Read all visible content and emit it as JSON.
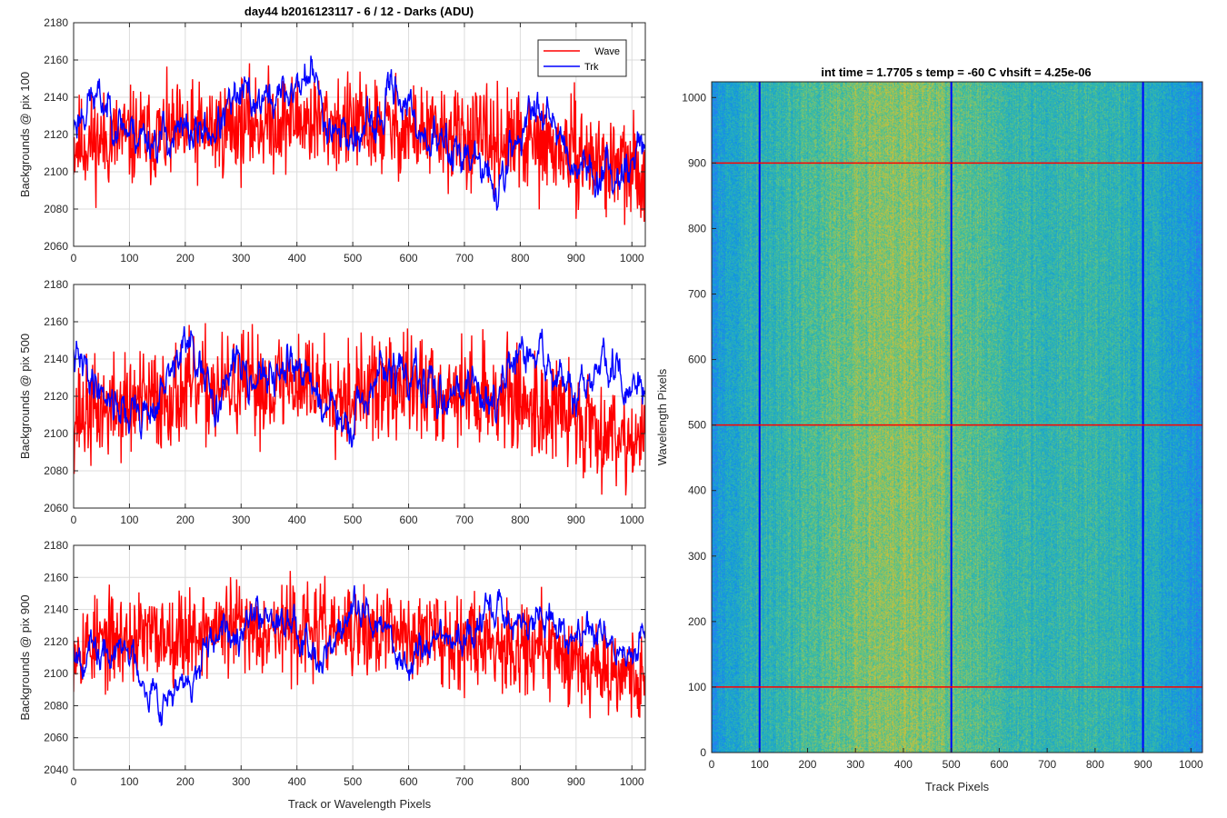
{
  "figure": {
    "title": "day44 b2016123117 - 6 / 12 - Darks (ADU)",
    "colors": {
      "wave": "#ff0000",
      "trk": "#0000ff",
      "grid": "#dcdcdc",
      "axis": "#262626"
    }
  },
  "chart_data": [
    {
      "type": "line",
      "ylabel": "Backgrounds @ pix 100",
      "xlabel": "",
      "xlim": [
        0,
        1024
      ],
      "ylim": [
        2060,
        2180
      ],
      "xticks": [
        0,
        100,
        200,
        300,
        400,
        500,
        600,
        700,
        800,
        900,
        1000
      ],
      "yticks": [
        2060,
        2080,
        2100,
        2120,
        2140,
        2160,
        2180
      ],
      "grid": true,
      "legend": {
        "placement": "top-right",
        "entries": [
          "Wave",
          "Trk"
        ]
      },
      "series": [
        {
          "name": "Wave",
          "color": "#ff0000",
          "mean": 2120,
          "noise": 13,
          "seed": 11,
          "anchors": [
            [
              0,
              2115
            ],
            [
              100,
              2118
            ],
            [
              200,
              2120
            ],
            [
              300,
              2125
            ],
            [
              400,
              2128
            ],
            [
              500,
              2125
            ],
            [
              600,
              2122
            ],
            [
              700,
              2118
            ],
            [
              800,
              2115
            ],
            [
              900,
              2110
            ],
            [
              1000,
              2100
            ],
            [
              1024,
              2098
            ]
          ]
        },
        {
          "name": "Trk",
          "color": "#0000ff",
          "mean": 2120,
          "noise": 4,
          "seed": 23,
          "anchors": [
            [
              0,
              2125
            ],
            [
              30,
              2140
            ],
            [
              60,
              2135
            ],
            [
              100,
              2122
            ],
            [
              150,
              2118
            ],
            [
              200,
              2120
            ],
            [
              250,
              2122
            ],
            [
              300,
              2140
            ],
            [
              350,
              2138
            ],
            [
              400,
              2145
            ],
            [
              425,
              2155
            ],
            [
              450,
              2130
            ],
            [
              500,
              2118
            ],
            [
              550,
              2125
            ],
            [
              575,
              2150
            ],
            [
              600,
              2130
            ],
            [
              650,
              2115
            ],
            [
              700,
              2112
            ],
            [
              760,
              2090
            ],
            [
              790,
              2115
            ],
            [
              820,
              2130
            ],
            [
              850,
              2140
            ],
            [
              870,
              2120
            ],
            [
              900,
              2105
            ],
            [
              950,
              2098
            ],
            [
              1000,
              2105
            ],
            [
              1024,
              2120
            ]
          ]
        }
      ]
    },
    {
      "type": "line",
      "ylabel": "Backgrounds @ pix 500",
      "xlabel": "",
      "xlim": [
        0,
        1024
      ],
      "ylim": [
        2060,
        2180
      ],
      "xticks": [
        0,
        100,
        200,
        300,
        400,
        500,
        600,
        700,
        800,
        900,
        1000
      ],
      "yticks": [
        2060,
        2080,
        2100,
        2120,
        2140,
        2160,
        2180
      ],
      "grid": true,
      "series": [
        {
          "name": "Wave",
          "color": "#ff0000",
          "mean": 2120,
          "noise": 14,
          "seed": 37,
          "anchors": [
            [
              0,
              2110
            ],
            [
              100,
              2115
            ],
            [
              200,
              2122
            ],
            [
              300,
              2125
            ],
            [
              400,
              2128
            ],
            [
              500,
              2122
            ],
            [
              600,
              2125
            ],
            [
              700,
              2122
            ],
            [
              800,
              2118
            ],
            [
              900,
              2108
            ],
            [
              1000,
              2098
            ],
            [
              1024,
              2095
            ]
          ]
        },
        {
          "name": "Trk",
          "color": "#0000ff",
          "mean": 2120,
          "noise": 4,
          "seed": 41,
          "anchors": [
            [
              0,
              2140
            ],
            [
              50,
              2125
            ],
            [
              100,
              2110
            ],
            [
              150,
              2115
            ],
            [
              200,
              2150
            ],
            [
              250,
              2115
            ],
            [
              300,
              2140
            ],
            [
              350,
              2125
            ],
            [
              400,
              2140
            ],
            [
              450,
              2115
            ],
            [
              500,
              2100
            ],
            [
              550,
              2135
            ],
            [
              600,
              2130
            ],
            [
              650,
              2120
            ],
            [
              700,
              2128
            ],
            [
              750,
              2118
            ],
            [
              800,
              2140
            ],
            [
              850,
              2140
            ],
            [
              900,
              2115
            ],
            [
              950,
              2140
            ],
            [
              1000,
              2120
            ],
            [
              1024,
              2125
            ]
          ]
        }
      ]
    },
    {
      "type": "line",
      "ylabel": "Backgrounds @ pix 900",
      "xlabel": "Track or Wavelength Pixels",
      "xlim": [
        0,
        1024
      ],
      "ylim": [
        2040,
        2180
      ],
      "xticks": [
        0,
        100,
        200,
        300,
        400,
        500,
        600,
        700,
        800,
        900,
        1000
      ],
      "yticks": [
        2040,
        2060,
        2080,
        2100,
        2120,
        2140,
        2160,
        2180
      ],
      "grid": true,
      "series": [
        {
          "name": "Wave",
          "color": "#ff0000",
          "mean": 2120,
          "noise": 14,
          "seed": 53,
          "anchors": [
            [
              0,
              2118
            ],
            [
              100,
              2122
            ],
            [
              200,
              2125
            ],
            [
              300,
              2130
            ],
            [
              400,
              2128
            ],
            [
              500,
              2125
            ],
            [
              600,
              2125
            ],
            [
              700,
              2122
            ],
            [
              800,
              2118
            ],
            [
              900,
              2110
            ],
            [
              1000,
              2100
            ],
            [
              1024,
              2095
            ]
          ]
        },
        {
          "name": "Trk",
          "color": "#0000ff",
          "mean": 2120,
          "noise": 4,
          "seed": 67,
          "anchors": [
            [
              0,
              2118
            ],
            [
              50,
              2110
            ],
            [
              100,
              2115
            ],
            [
              150,
              2085
            ],
            [
              200,
              2090
            ],
            [
              250,
              2115
            ],
            [
              300,
              2135
            ],
            [
              350,
              2140
            ],
            [
              400,
              2130
            ],
            [
              450,
              2110
            ],
            [
              500,
              2140
            ],
            [
              550,
              2130
            ],
            [
              600,
              2105
            ],
            [
              650,
              2125
            ],
            [
              700,
              2120
            ],
            [
              750,
              2140
            ],
            [
              800,
              2130
            ],
            [
              850,
              2135
            ],
            [
              900,
              2122
            ],
            [
              950,
              2125
            ],
            [
              1000,
              2105
            ],
            [
              1024,
              2130
            ]
          ]
        }
      ]
    },
    {
      "type": "heatmap",
      "title": "int time = 1.7705 s   temp = -60 C   vhsift = 4.25e-06",
      "xlabel": "Track Pixels",
      "ylabel": "Wavelength Pixels",
      "xlim": [
        0,
        1024
      ],
      "ylim": [
        0,
        1024
      ],
      "xticks": [
        0,
        100,
        200,
        300,
        400,
        500,
        600,
        700,
        800,
        900,
        1000
      ],
      "yticks": [
        0,
        100,
        200,
        300,
        400,
        500,
        600,
        700,
        800,
        900,
        1000
      ],
      "colormap": "parula",
      "hlines": {
        "values": [
          100,
          500,
          900
        ],
        "color": "#ff0000"
      },
      "vlines": {
        "values": [
          100,
          500,
          900
        ],
        "color": "#0000ff"
      }
    }
  ]
}
